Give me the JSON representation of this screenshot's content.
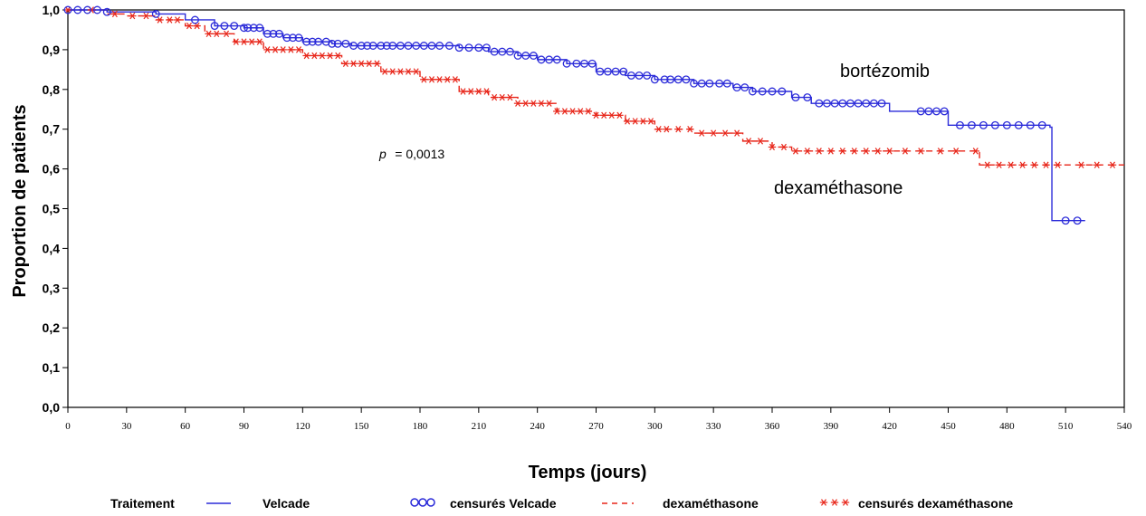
{
  "chart_data": {
    "type": "line",
    "title": "",
    "xlabel": "Temps (jours)",
    "ylabel": "Proportion de patients",
    "xlim": [
      0,
      540
    ],
    "ylim": [
      0,
      1
    ],
    "x_ticks": [
      "0",
      "30",
      "60",
      "90",
      "120",
      "150",
      "180",
      "210",
      "240",
      "270",
      "300",
      "330",
      "360",
      "390",
      "420",
      "450",
      "480",
      "510",
      "540"
    ],
    "y_ticks": [
      "0,0",
      "0,1",
      "0,2",
      "0,3",
      "0,4",
      "0,5",
      "0,6",
      "0,7",
      "0,8",
      "0,9",
      "1,0"
    ],
    "grid": false,
    "legend_position": "bottom",
    "annotations": {
      "p_prefix": "p",
      "p_value": "= 0,0013",
      "label_bortezomib": "bortézomib",
      "label_dexamethasone": "dexaméthasone"
    },
    "legend": {
      "title": "Traitement",
      "velcade": "Velcade",
      "velcade_marker": "○○○",
      "censored_velcade": "censurés Velcade",
      "dexamethasone": "dexaméthasone",
      "censored_dexamethasone": "censurés dexaméthasone"
    },
    "colors": {
      "velcade": "#2b2bd9",
      "dexamethasone": "#e8261a"
    },
    "series": [
      {
        "name": "Velcade",
        "curve": [
          [
            0,
            1.0
          ],
          [
            20,
            0.995
          ],
          [
            45,
            0.99
          ],
          [
            60,
            0.975
          ],
          [
            75,
            0.96
          ],
          [
            90,
            0.955
          ],
          [
            100,
            0.94
          ],
          [
            110,
            0.93
          ],
          [
            120,
            0.92
          ],
          [
            135,
            0.915
          ],
          [
            145,
            0.91
          ],
          [
            200,
            0.905
          ],
          [
            215,
            0.895
          ],
          [
            230,
            0.885
          ],
          [
            240,
            0.875
          ],
          [
            255,
            0.865
          ],
          [
            270,
            0.845
          ],
          [
            285,
            0.835
          ],
          [
            300,
            0.825
          ],
          [
            320,
            0.815
          ],
          [
            340,
            0.805
          ],
          [
            350,
            0.795
          ],
          [
            370,
            0.78
          ],
          [
            380,
            0.765
          ],
          [
            420,
            0.745
          ],
          [
            450,
            0.71
          ],
          [
            502,
            0.705
          ],
          [
            503,
            0.47
          ],
          [
            520,
            0.47
          ]
        ],
        "censored_x": [
          0,
          5,
          10,
          15,
          20,
          45,
          65,
          75,
          80,
          85,
          90,
          92,
          95,
          98,
          102,
          105,
          108,
          112,
          115,
          118,
          122,
          125,
          128,
          132,
          135,
          138,
          142,
          146,
          150,
          153,
          156,
          160,
          163,
          166,
          170,
          174,
          178,
          182,
          186,
          190,
          195,
          200,
          205,
          210,
          214,
          218,
          222,
          226,
          230,
          234,
          238,
          242,
          246,
          250,
          255,
          260,
          264,
          268,
          272,
          276,
          280,
          284,
          288,
          292,
          296,
          300,
          305,
          308,
          312,
          316,
          320,
          324,
          328,
          333,
          337,
          342,
          346,
          350,
          355,
          360,
          365,
          372,
          378,
          384,
          388,
          392,
          396,
          400,
          404,
          408,
          412,
          416,
          436,
          440,
          444,
          448,
          456,
          462,
          468,
          474,
          480,
          486,
          492,
          498,
          510,
          516
        ]
      },
      {
        "name": "dexaméthasone",
        "curve": [
          [
            0,
            1.0
          ],
          [
            20,
            0.99
          ],
          [
            30,
            0.985
          ],
          [
            45,
            0.975
          ],
          [
            60,
            0.96
          ],
          [
            70,
            0.94
          ],
          [
            85,
            0.92
          ],
          [
            100,
            0.9
          ],
          [
            120,
            0.885
          ],
          [
            140,
            0.865
          ],
          [
            160,
            0.845
          ],
          [
            180,
            0.825
          ],
          [
            200,
            0.795
          ],
          [
            215,
            0.78
          ],
          [
            230,
            0.765
          ],
          [
            250,
            0.745
          ],
          [
            270,
            0.735
          ],
          [
            285,
            0.72
          ],
          [
            300,
            0.7
          ],
          [
            320,
            0.69
          ],
          [
            345,
            0.67
          ],
          [
            360,
            0.655
          ],
          [
            370,
            0.645
          ],
          [
            465,
            0.645
          ],
          [
            466,
            0.61
          ],
          [
            540,
            0.61
          ]
        ],
        "censored_x": [
          0,
          12,
          24,
          33,
          40,
          47,
          52,
          56,
          62,
          66,
          72,
          76,
          81,
          86,
          90,
          94,
          98,
          102,
          106,
          110,
          114,
          118,
          122,
          126,
          130,
          134,
          138,
          142,
          146,
          150,
          154,
          158,
          162,
          166,
          170,
          174,
          178,
          182,
          186,
          190,
          194,
          198,
          202,
          206,
          210,
          214,
          218,
          222,
          226,
          230,
          234,
          238,
          242,
          246,
          250,
          254,
          258,
          262,
          266,
          270,
          274,
          278,
          282,
          286,
          290,
          294,
          298,
          302,
          306,
          312,
          318,
          324,
          330,
          336,
          342,
          348,
          354,
          360,
          366,
          372,
          378,
          384,
          390,
          396,
          402,
          408,
          414,
          420,
          428,
          436,
          446,
          454,
          464,
          470,
          476,
          482,
          488,
          494,
          500,
          506,
          518,
          526,
          534
        ]
      }
    ]
  }
}
